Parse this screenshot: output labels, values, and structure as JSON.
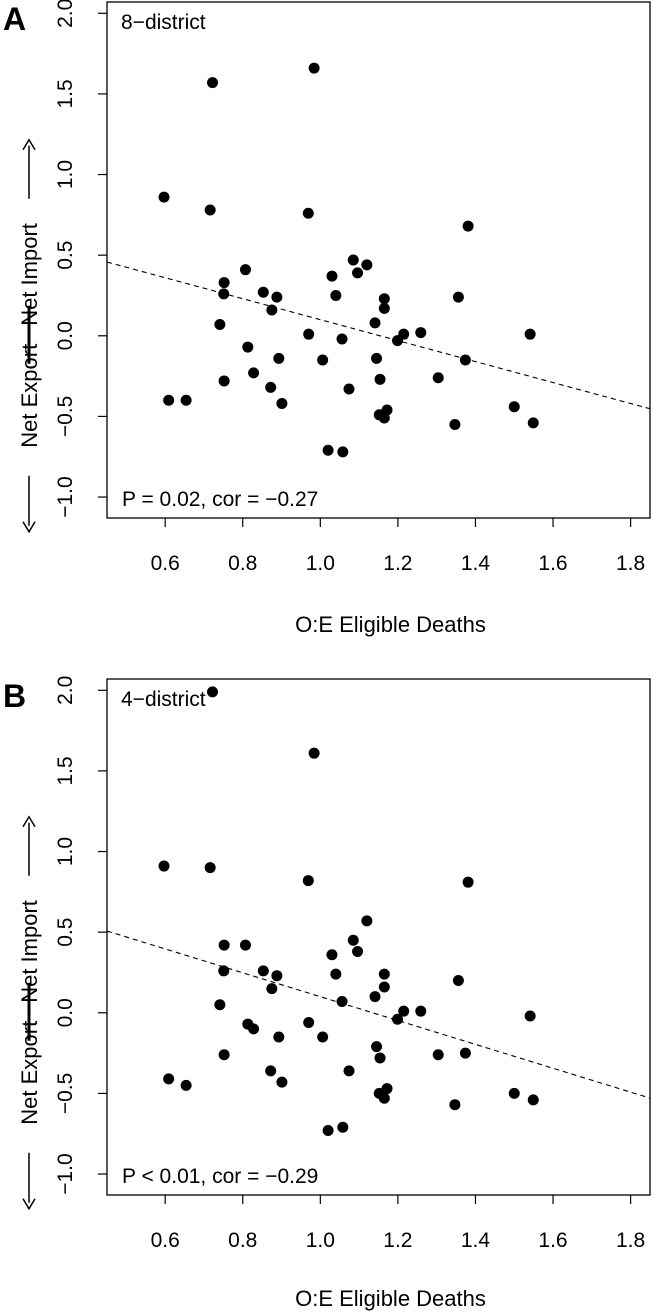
{
  "chart_data": [
    {
      "type": "scatter",
      "panel_label": "A",
      "subtitle": "8−district",
      "annotation": "P = 0.02, cor = −0.27",
      "xlabel": "O:E Eligible Deaths",
      "ylabel_left": "Net Export",
      "ylabel_right": "Net Import",
      "xlim": [
        0.45,
        1.85
      ],
      "ylim": [
        -1.13,
        2.07
      ],
      "xticks": [
        0.6,
        0.8,
        1.0,
        1.2,
        1.4,
        1.6,
        1.8
      ],
      "xtick_labels": [
        "0.6",
        "0.8",
        "1.0",
        "1.2",
        "1.4",
        "1.6",
        "1.8"
      ],
      "yticks": [
        -1.0,
        -0.5,
        0.0,
        0.5,
        1.0,
        1.5,
        2.0
      ],
      "ytick_labels": [
        "−1.0",
        "−0.5",
        "0.0",
        "0.5",
        "1.0",
        "1.5",
        "2.0"
      ],
      "trend_line": {
        "style": "dashed",
        "intercept": 0.75,
        "slope": -0.65
      },
      "points": [
        {
          "x": 0.597,
          "y": 0.86
        },
        {
          "x": 0.609,
          "y": -0.4
        },
        {
          "x": 0.654,
          "y": -0.4
        },
        {
          "x": 0.716,
          "y": 0.78
        },
        {
          "x": 0.722,
          "y": 1.57
        },
        {
          "x": 0.741,
          "y": 0.07
        },
        {
          "x": 0.751,
          "y": 0.26
        },
        {
          "x": 0.752,
          "y": 0.33
        },
        {
          "x": 0.752,
          "y": -0.28
        },
        {
          "x": 0.807,
          "y": 0.41
        },
        {
          "x": 0.813,
          "y": -0.07
        },
        {
          "x": 0.828,
          "y": -0.23
        },
        {
          "x": 0.853,
          "y": 0.27
        },
        {
          "x": 0.872,
          "y": -0.32
        },
        {
          "x": 0.875,
          "y": 0.16
        },
        {
          "x": 0.888,
          "y": 0.24
        },
        {
          "x": 0.893,
          "y": -0.14
        },
        {
          "x": 0.901,
          "y": -0.42
        },
        {
          "x": 0.969,
          "y": 0.76
        },
        {
          "x": 0.97,
          "y": 0.01
        },
        {
          "x": 0.984,
          "y": 1.66
        },
        {
          "x": 1.006,
          "y": -0.15
        },
        {
          "x": 1.02,
          "y": -0.71
        },
        {
          "x": 1.03,
          "y": 0.37
        },
        {
          "x": 1.04,
          "y": 0.25
        },
        {
          "x": 1.056,
          "y": -0.02
        },
        {
          "x": 1.058,
          "y": -0.72
        },
        {
          "x": 1.074,
          "y": -0.33
        },
        {
          "x": 1.085,
          "y": 0.47
        },
        {
          "x": 1.096,
          "y": 0.39
        },
        {
          "x": 1.12,
          "y": 0.44
        },
        {
          "x": 1.141,
          "y": 0.08
        },
        {
          "x": 1.145,
          "y": -0.14
        },
        {
          "x": 1.152,
          "y": -0.49
        },
        {
          "x": 1.154,
          "y": -0.27
        },
        {
          "x": 1.165,
          "y": 0.23
        },
        {
          "x": 1.165,
          "y": 0.17
        },
        {
          "x": 1.165,
          "y": -0.51
        },
        {
          "x": 1.172,
          "y": -0.46
        },
        {
          "x": 1.199,
          "y": -0.03
        },
        {
          "x": 1.215,
          "y": 0.01
        },
        {
          "x": 1.259,
          "y": 0.02
        },
        {
          "x": 1.304,
          "y": -0.26
        },
        {
          "x": 1.347,
          "y": -0.55
        },
        {
          "x": 1.356,
          "y": 0.24
        },
        {
          "x": 1.374,
          "y": -0.15
        },
        {
          "x": 1.381,
          "y": 0.68
        },
        {
          "x": 1.5,
          "y": -0.44
        },
        {
          "x": 1.541,
          "y": 0.01
        },
        {
          "x": 1.549,
          "y": -0.54
        }
      ]
    },
    {
      "type": "scatter",
      "panel_label": "B",
      "subtitle": "4−district",
      "annotation": "P < 0.01, cor = −0.29",
      "xlabel": "O:E Eligible Deaths",
      "ylabel_left": "Net Export",
      "ylabel_right": "Net Import",
      "xlim": [
        0.45,
        1.85
      ],
      "ylim": [
        -1.13,
        2.07
      ],
      "xticks": [
        0.6,
        0.8,
        1.0,
        1.2,
        1.4,
        1.6,
        1.8
      ],
      "xtick_labels": [
        "0.6",
        "0.8",
        "1.0",
        "1.2",
        "1.4",
        "1.6",
        "1.8"
      ],
      "yticks": [
        -1.0,
        -0.5,
        0.0,
        0.5,
        1.0,
        1.5,
        2.0
      ],
      "ytick_labels": [
        "−1.0",
        "−0.5",
        "0.0",
        "0.5",
        "1.0",
        "1.5",
        "2.0"
      ],
      "trend_line": {
        "style": "dashed",
        "intercept": 0.84,
        "slope": -0.74
      },
      "points": [
        {
          "x": 0.597,
          "y": 0.91
        },
        {
          "x": 0.609,
          "y": -0.41
        },
        {
          "x": 0.654,
          "y": -0.45
        },
        {
          "x": 0.716,
          "y": 0.9
        },
        {
          "x": 0.722,
          "y": 1.99
        },
        {
          "x": 0.741,
          "y": 0.05
        },
        {
          "x": 0.751,
          "y": 0.26
        },
        {
          "x": 0.752,
          "y": 0.42
        },
        {
          "x": 0.752,
          "y": -0.26
        },
        {
          "x": 0.807,
          "y": 0.42
        },
        {
          "x": 0.813,
          "y": -0.07
        },
        {
          "x": 0.828,
          "y": -0.1
        },
        {
          "x": 0.853,
          "y": 0.26
        },
        {
          "x": 0.872,
          "y": -0.36
        },
        {
          "x": 0.875,
          "y": 0.15
        },
        {
          "x": 0.888,
          "y": 0.23
        },
        {
          "x": 0.893,
          "y": -0.15
        },
        {
          "x": 0.901,
          "y": -0.43
        },
        {
          "x": 0.969,
          "y": 0.82
        },
        {
          "x": 0.97,
          "y": -0.06
        },
        {
          "x": 0.984,
          "y": 1.61
        },
        {
          "x": 1.006,
          "y": -0.15
        },
        {
          "x": 1.02,
          "y": -0.73
        },
        {
          "x": 1.03,
          "y": 0.36
        },
        {
          "x": 1.04,
          "y": 0.24
        },
        {
          "x": 1.056,
          "y": 0.07
        },
        {
          "x": 1.058,
          "y": -0.71
        },
        {
          "x": 1.074,
          "y": -0.36
        },
        {
          "x": 1.085,
          "y": 0.45
        },
        {
          "x": 1.096,
          "y": 0.38
        },
        {
          "x": 1.12,
          "y": 0.57
        },
        {
          "x": 1.141,
          "y": 0.1
        },
        {
          "x": 1.145,
          "y": -0.21
        },
        {
          "x": 1.152,
          "y": -0.5
        },
        {
          "x": 1.154,
          "y": -0.28
        },
        {
          "x": 1.165,
          "y": 0.24
        },
        {
          "x": 1.165,
          "y": 0.16
        },
        {
          "x": 1.165,
          "y": -0.53
        },
        {
          "x": 1.172,
          "y": -0.47
        },
        {
          "x": 1.199,
          "y": -0.04
        },
        {
          "x": 1.215,
          "y": 0.01
        },
        {
          "x": 1.259,
          "y": 0.01
        },
        {
          "x": 1.304,
          "y": -0.26
        },
        {
          "x": 1.347,
          "y": -0.57
        },
        {
          "x": 1.356,
          "y": 0.2
        },
        {
          "x": 1.374,
          "y": -0.25
        },
        {
          "x": 1.381,
          "y": 0.81
        },
        {
          "x": 1.5,
          "y": -0.5
        },
        {
          "x": 1.541,
          "y": -0.02
        },
        {
          "x": 1.549,
          "y": -0.54
        }
      ]
    }
  ]
}
